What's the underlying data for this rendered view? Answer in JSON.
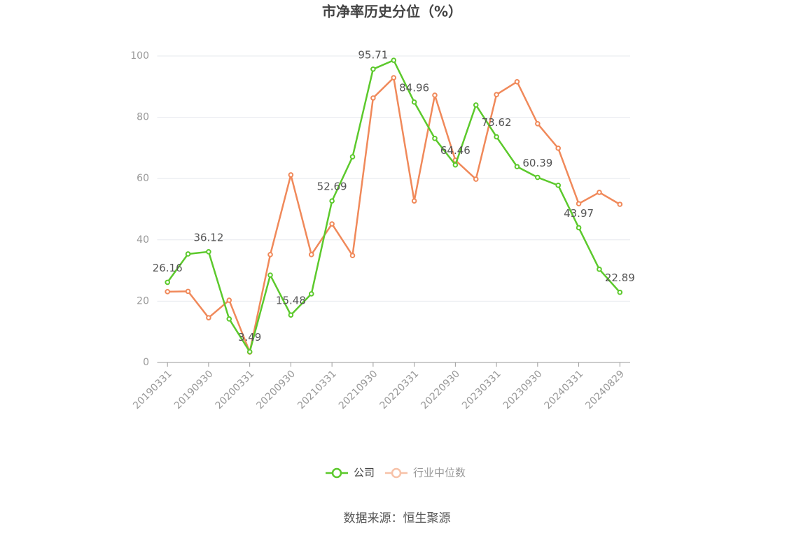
{
  "chart_data": {
    "type": "line",
    "title": "市净率历史分位（%）",
    "categories": [
      "20190331",
      null,
      "20190930",
      null,
      "20200331",
      null,
      "20200930",
      null,
      "20210331",
      null,
      "20210930",
      null,
      "20220331",
      null,
      "20220930",
      null,
      "20230331",
      null,
      "20230930",
      null,
      "20240331",
      null,
      "20240829"
    ],
    "series": [
      {
        "name": "公司",
        "color": "#5cc92c",
        "values": [
          26.16,
          35.4,
          36.12,
          14.2,
          3.49,
          28.5,
          15.48,
          22.4,
          52.69,
          67.1,
          95.71,
          98.6,
          84.96,
          73.1,
          64.46,
          84.0,
          73.62,
          63.9,
          60.39,
          57.8,
          43.97,
          30.4,
          22.89
        ]
      },
      {
        "name": "行业中位数",
        "color": "#f0895a",
        "values": [
          23.1,
          23.2,
          14.6,
          20.3,
          3.4,
          35.2,
          61.2,
          35.2,
          45.2,
          34.9,
          86.3,
          92.9,
          52.7,
          87.2,
          66.0,
          59.8,
          87.4,
          91.6,
          77.9,
          69.9,
          51.8,
          55.5,
          51.6
        ]
      }
    ],
    "ylim": [
      0,
      100
    ],
    "yticks": [
      0,
      20,
      40,
      60,
      80,
      100
    ],
    "grid": true,
    "legend": "bottom",
    "source": "数据来源：恒生聚源"
  }
}
